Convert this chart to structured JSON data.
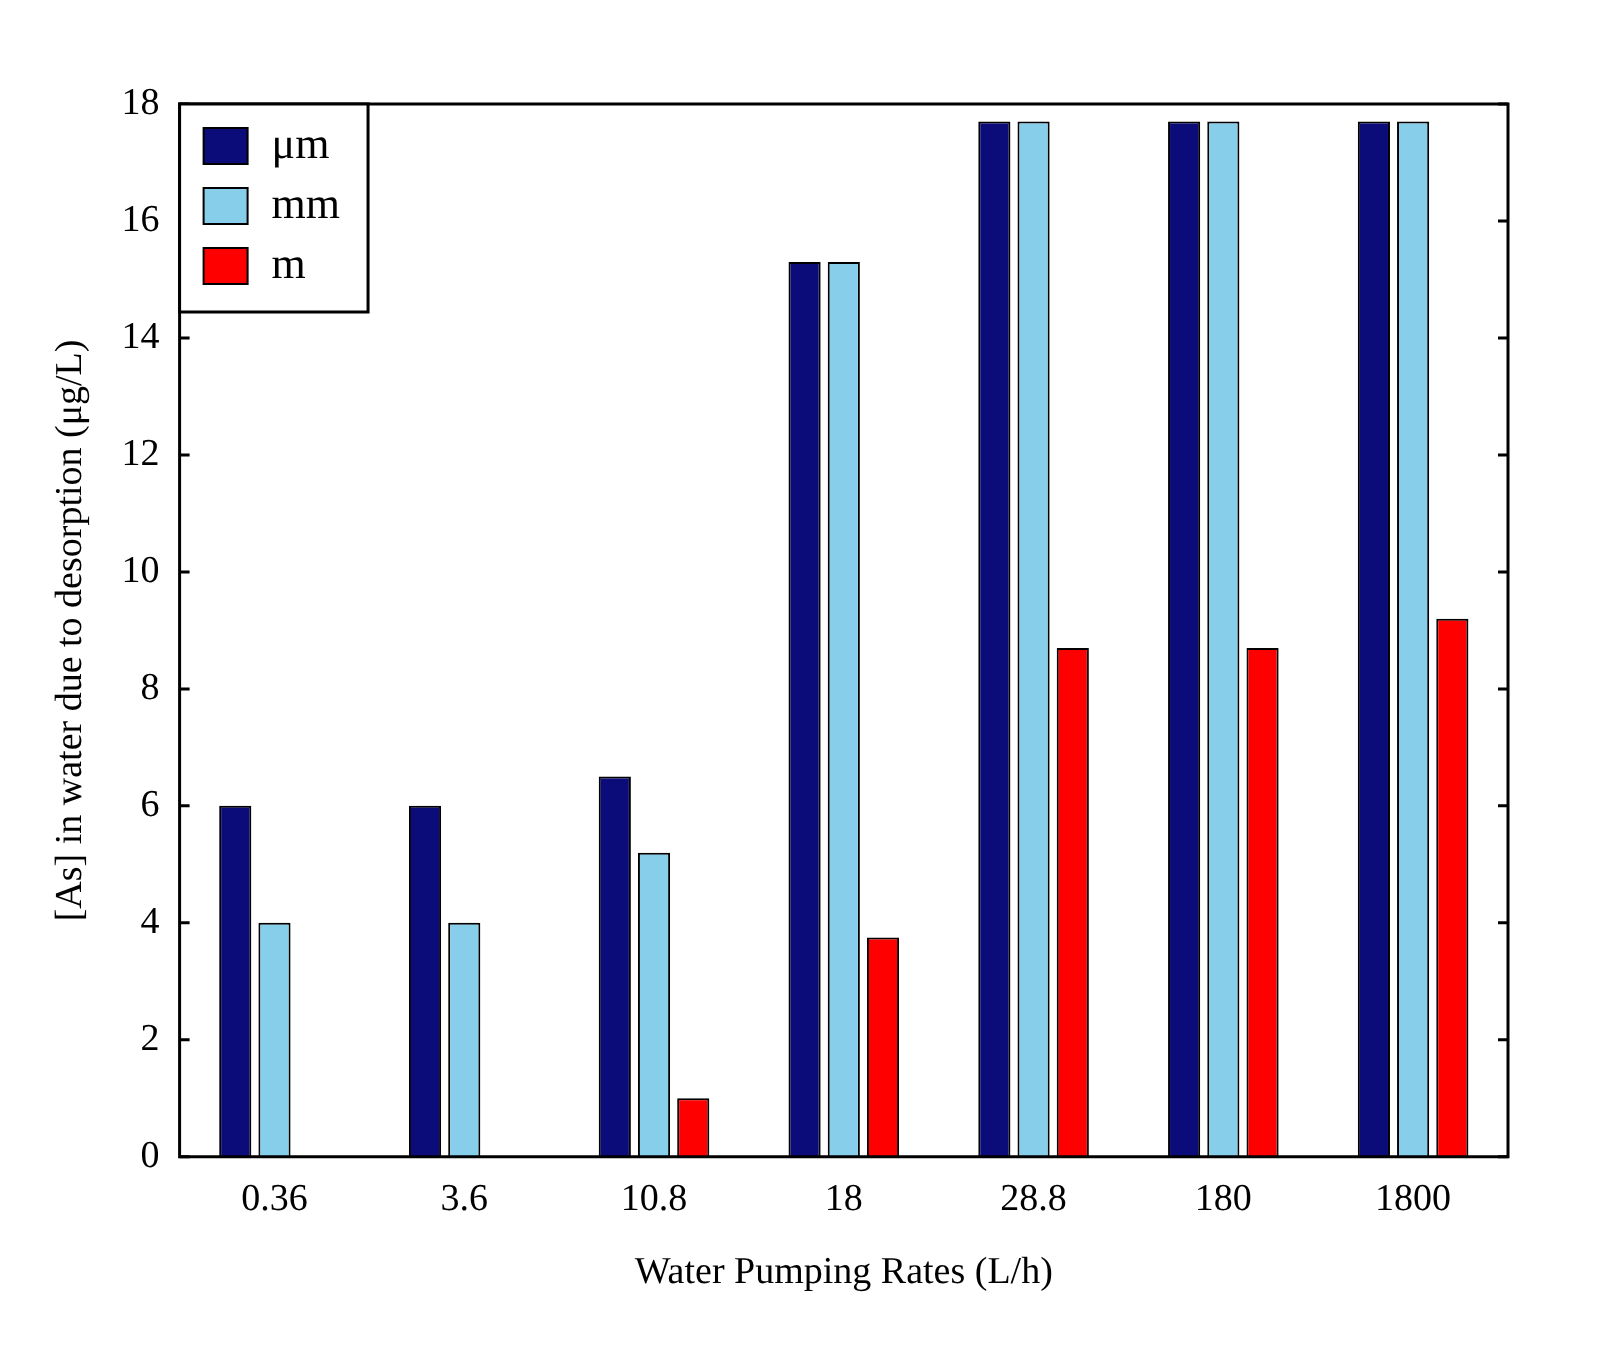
{
  "chart_data": {
    "type": "bar",
    "xlabel": "Water Pumping Rates (L/h)",
    "ylabel": "[As] in water due to desorption (μg/L)",
    "categories": [
      "0.36",
      "3.6",
      "10.8",
      "18",
      "28.8",
      "180",
      "1800"
    ],
    "series": [
      {
        "name": "μm",
        "color": "#0b0b7a",
        "values": [
          6,
          6,
          6.5,
          15.3,
          17.7,
          17.7,
          17.7
        ]
      },
      {
        "name": "mm",
        "color": "#87ceeb",
        "values": [
          4,
          4,
          5.2,
          15.3,
          17.7,
          17.7,
          17.7
        ]
      },
      {
        "name": "m",
        "color": "#ff0000",
        "values": [
          null,
          null,
          1,
          3.75,
          8.7,
          8.7,
          9.2
        ]
      }
    ],
    "ylim": [
      0,
      18
    ],
    "yticks": [
      0,
      2,
      4,
      6,
      8,
      10,
      12,
      14,
      16,
      18
    ],
    "grid": false,
    "legend": "top left"
  }
}
